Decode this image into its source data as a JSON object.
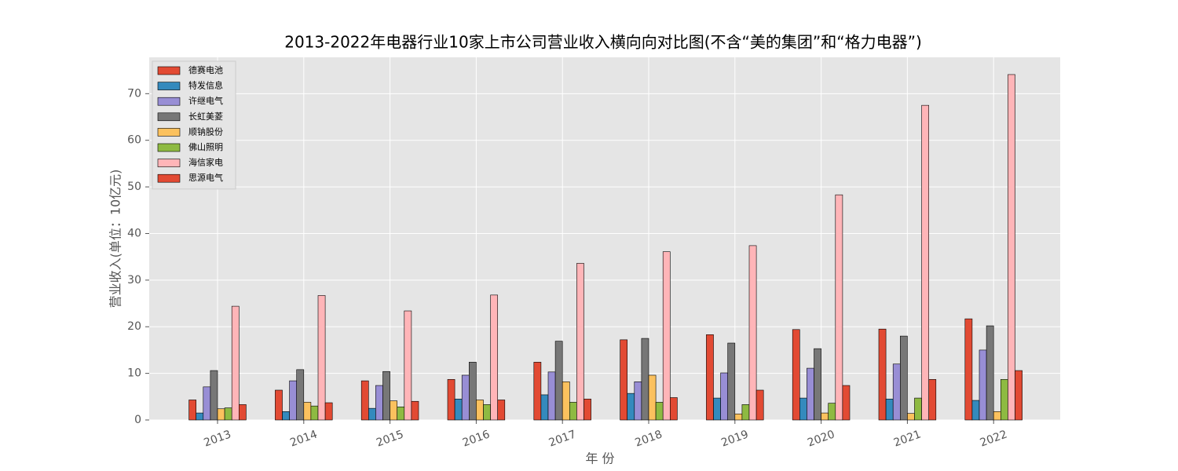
{
  "chart_data": {
    "type": "bar",
    "title": "2013-2022年电器行业10家上市公司营业收入横向向对比图(不含“美的集团”和“格力电器”)",
    "x_label": "年 份",
    "y_label": "营业收入(单位：10亿元)",
    "categories": [
      "2013",
      "2014",
      "2015",
      "2016",
      "2017",
      "2018",
      "2019",
      "2020",
      "2021",
      "2022"
    ],
    "series": [
      {
        "name": "德赛电池",
        "color": "#E24A33",
        "values": [
          4.3,
          6.4,
          8.4,
          8.7,
          12.4,
          17.2,
          18.3,
          19.4,
          19.5,
          21.7
        ]
      },
      {
        "name": "特发信息",
        "color": "#348ABD",
        "values": [
          1.5,
          1.8,
          2.5,
          4.5,
          5.4,
          5.7,
          4.7,
          4.7,
          4.5,
          4.2
        ]
      },
      {
        "name": "许继电气",
        "color": "#988ED5",
        "values": [
          7.1,
          8.4,
          7.4,
          9.6,
          10.3,
          8.2,
          10.1,
          11.1,
          12.0,
          15.0
        ]
      },
      {
        "name": "长虹美菱",
        "color": "#777777",
        "values": [
          10.6,
          10.8,
          10.4,
          12.4,
          16.9,
          17.5,
          16.5,
          15.3,
          18.0,
          20.2
        ]
      },
      {
        "name": "顺钠股份",
        "color": "#FBC15E",
        "values": [
          2.4,
          3.8,
          4.1,
          4.3,
          8.2,
          9.6,
          1.3,
          1.5,
          1.4,
          1.8
        ]
      },
      {
        "name": "佛山照明",
        "color": "#8EBA42",
        "values": [
          2.6,
          3.0,
          2.8,
          3.3,
          3.8,
          3.8,
          3.3,
          3.6,
          4.7,
          8.7
        ]
      },
      {
        "name": "海信家电",
        "color": "#FFB5B8",
        "values": [
          24.4,
          26.7,
          23.4,
          26.8,
          33.6,
          36.1,
          37.4,
          48.3,
          67.5,
          74.1
        ]
      },
      {
        "name": "思源电气",
        "color": "#E24A33",
        "values": [
          3.3,
          3.7,
          4.0,
          4.3,
          4.5,
          4.8,
          6.4,
          7.4,
          8.7,
          10.6
        ]
      }
    ],
    "ylim": [
      0,
      77.8
    ],
    "yticks": [
      0,
      10,
      20,
      30,
      40,
      50,
      60,
      70
    ],
    "grid": true,
    "legend": "upper-left",
    "background": "#E5E5E5"
  }
}
